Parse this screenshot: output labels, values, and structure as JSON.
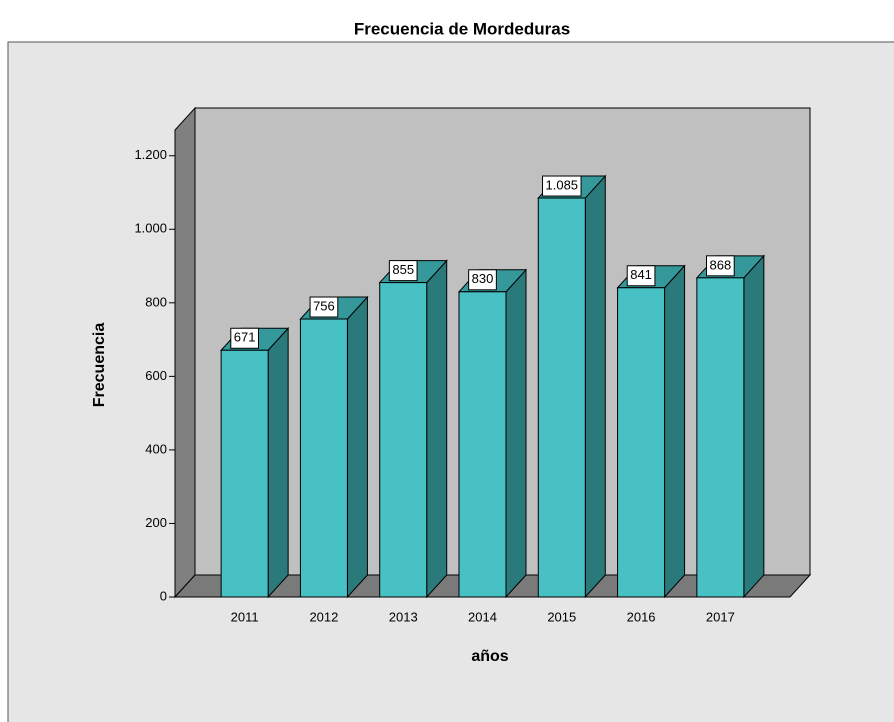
{
  "chart_data": {
    "type": "bar3d",
    "title": "Frecuencia de Mordeduras",
    "x_label": "años",
    "y_label": "Frecuencia",
    "categories": [
      "2011",
      "2012",
      "2013",
      "2014",
      "2015",
      "2016",
      "2017"
    ],
    "values": [
      671,
      756,
      855,
      830,
      1085,
      841,
      868
    ],
    "value_labels": [
      "671",
      "756",
      "855",
      "830",
      "1.085",
      "841",
      "868"
    ],
    "color": "#48c1c4",
    "ylim": [
      0,
      1270
    ],
    "yticks": [
      0,
      200,
      400,
      600,
      800,
      {
        "value": 1000,
        "label": "1.000"
      },
      {
        "value": 1200,
        "label": "1.200"
      }
    ]
  }
}
